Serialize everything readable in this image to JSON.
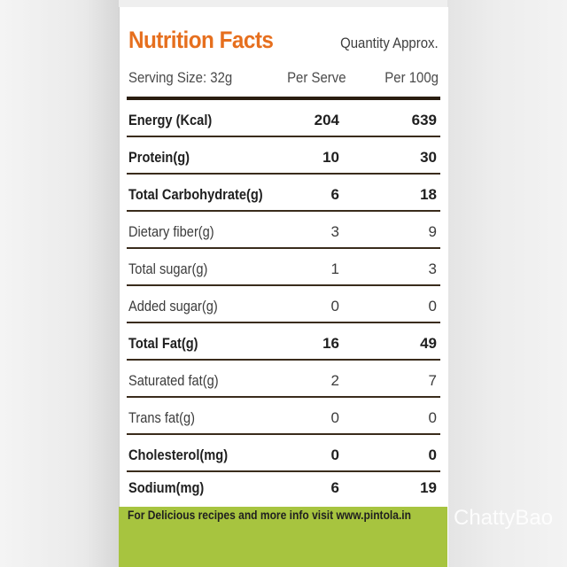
{
  "label": {
    "title": "Nutrition Facts",
    "quantity_note": "Quantity Approx.",
    "serving_size": "Serving Size: 32g",
    "col_per_serve": "Per Serve",
    "col_per_100g": "Per 100g",
    "title_color": "#e66f1e",
    "band_color": "#a7c43f"
  },
  "rows": [
    {
      "name": "Energy (Kcal)",
      "per_serve": "204",
      "per_100g": "639",
      "bold": true
    },
    {
      "name": "Protein(g)",
      "per_serve": "10",
      "per_100g": "30",
      "bold": true
    },
    {
      "name": "Total Carbohydrate(g)",
      "per_serve": "6",
      "per_100g": "18",
      "bold": true
    },
    {
      "name": "Dietary fiber(g)",
      "per_serve": "3",
      "per_100g": "9",
      "bold": false
    },
    {
      "name": "Total sugar(g)",
      "per_serve": "1",
      "per_100g": "3",
      "bold": false
    },
    {
      "name": "Added sugar(g)",
      "per_serve": "0",
      "per_100g": "0",
      "bold": false
    },
    {
      "name": "Total Fat(g)",
      "per_serve": "16",
      "per_100g": "49",
      "bold": true
    },
    {
      "name": "Saturated fat(g)",
      "per_serve": "2",
      "per_100g": "7",
      "bold": false
    },
    {
      "name": "Trans fat(g)",
      "per_serve": "0",
      "per_100g": "0",
      "bold": false
    },
    {
      "name": "Cholesterol(mg)",
      "per_serve": "0",
      "per_100g": "0",
      "bold": true
    },
    {
      "name": "Sodium(mg)",
      "per_serve": "6",
      "per_100g": "19",
      "bold": true
    }
  ],
  "footer": "For Delicious recipes and more info visit www.pintola.in",
  "watermark": "ChattyBao"
}
